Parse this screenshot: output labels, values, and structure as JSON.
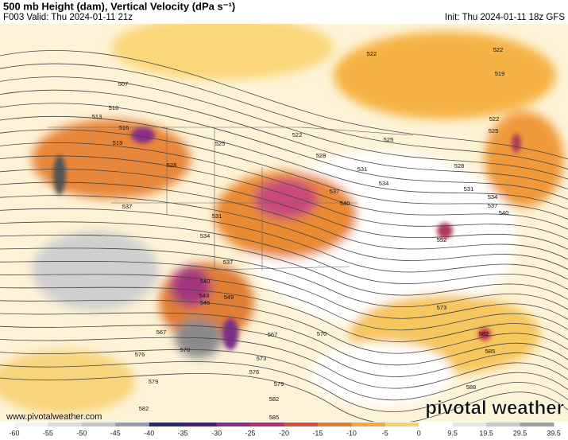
{
  "header": {
    "title": "500 mb Height (dam), Vertical Velocity (dPa s⁻¹)",
    "valid": "F003 Valid: Thu 2024-01-11 21z",
    "init": "Init: Thu 2024-01-11 18z GFS"
  },
  "contour_labels": [
    522,
    522,
    519,
    507,
    510,
    513,
    516,
    519,
    525,
    522,
    525,
    522,
    525,
    528,
    528,
    528,
    531,
    534,
    537,
    540,
    531,
    534,
    537,
    540,
    537,
    531,
    534,
    537,
    540,
    543,
    546,
    549,
    552,
    573,
    582,
    585,
    567,
    570,
    570,
    567,
    576,
    573,
    576,
    579,
    579,
    582,
    582,
    585,
    588
  ],
  "colorbar": {
    "ticks": [
      -60,
      -55,
      -50,
      -45,
      -40,
      -35,
      -30,
      -25,
      -20,
      -15,
      -10,
      -5,
      0,
      9.5,
      19.5,
      29.5,
      39.5
    ]
  },
  "footer": {
    "website": "www.pivotalweather.com",
    "logo": "pivotal weather"
  }
}
